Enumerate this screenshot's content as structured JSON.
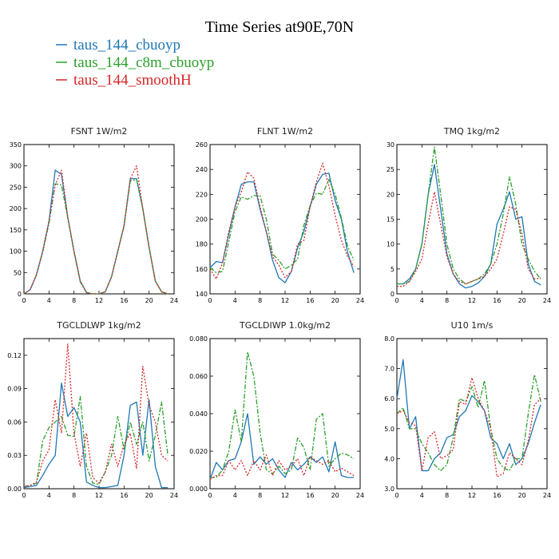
{
  "title": "Time Series at90E,70N",
  "colors": {
    "cbuoyp": "#1f77b4",
    "c8m": "#2ca02c",
    "smoothH": "#d62728"
  },
  "legend": [
    {
      "label": "taus_144_cbuoyp",
      "color": "#1f77b4"
    },
    {
      "label": "taus_144_c8m_cbuoyp",
      "color": "#2ca02c"
    },
    {
      "label": "taus_144_smoothH",
      "color": "#d62728"
    }
  ],
  "chart_data": [
    {
      "type": "line",
      "title": "FSNT   1W/m2",
      "x": [
        0,
        1,
        2,
        3,
        4,
        5,
        6,
        7,
        8,
        9,
        10,
        11,
        12,
        13,
        14,
        15,
        16,
        17,
        18,
        19,
        20,
        21,
        22,
        23
      ],
      "xlim": [
        0,
        24
      ],
      "xticks": [
        0,
        4,
        8,
        12,
        16,
        20,
        24
      ],
      "ylim": [
        0,
        350
      ],
      "yticks": [
        0,
        50,
        100,
        150,
        200,
        250,
        300,
        350
      ],
      "ytick_labels": [
        "0",
        "50",
        "100",
        "150",
        "200",
        "250",
        "300",
        "350"
      ],
      "series": [
        {
          "name": "taus_144_cbuoyp",
          "values": [
            0,
            10,
            45,
            100,
            170,
            290,
            280,
            180,
            100,
            30,
            3,
            0,
            0,
            5,
            40,
            100,
            160,
            270,
            270,
            200,
            110,
            30,
            5,
            0
          ]
        },
        {
          "name": "taus_144_c8m_cbuoyp",
          "values": [
            0,
            10,
            44,
            98,
            165,
            258,
            255,
            178,
            98,
            28,
            3,
            0,
            0,
            5,
            40,
            100,
            158,
            265,
            268,
            198,
            108,
            30,
            5,
            0
          ]
        },
        {
          "name": "taus_144_smoothH",
          "values": [
            0,
            10,
            45,
            100,
            170,
            255,
            290,
            180,
            100,
            30,
            3,
            0,
            0,
            5,
            40,
            100,
            160,
            270,
            300,
            200,
            110,
            30,
            5,
            0
          ]
        }
      ]
    },
    {
      "type": "line",
      "title": "FLNT   1W/m2",
      "x": [
        0,
        1,
        2,
        3,
        4,
        5,
        6,
        7,
        8,
        9,
        10,
        11,
        12,
        13,
        14,
        15,
        16,
        17,
        18,
        19,
        20,
        21,
        22,
        23
      ],
      "xlim": [
        0,
        24
      ],
      "xticks": [
        0,
        4,
        8,
        12,
        16,
        20,
        24
      ],
      "ylim": [
        140,
        260
      ],
      "yticks": [
        140,
        160,
        180,
        200,
        220,
        240,
        260
      ],
      "ytick_labels": [
        "140",
        "160",
        "180",
        "200",
        "220",
        "240",
        "260"
      ],
      "series": [
        {
          "name": "taus_144_cbuoyp",
          "values": [
            161,
            166,
            165,
            188,
            210,
            228,
            230,
            230,
            208,
            190,
            167,
            153,
            149,
            158,
            177,
            190,
            210,
            228,
            236,
            237,
            215,
            200,
            173,
            157
          ]
        },
        {
          "name": "taus_144_c8m_cbuoyp",
          "values": [
            161,
            157,
            158,
            182,
            206,
            218,
            216,
            219,
            219,
            200,
            172,
            167,
            160,
            163,
            168,
            195,
            211,
            221,
            220,
            232,
            220,
            201,
            178,
            167
          ]
        },
        {
          "name": "taus_144_smoothH",
          "values": [
            160,
            152,
            165,
            190,
            210,
            222,
            238,
            233,
            210,
            190,
            170,
            163,
            153,
            158,
            180,
            183,
            210,
            230,
            245,
            227,
            203,
            183,
            170,
            162
          ]
        }
      ]
    },
    {
      "type": "line",
      "title": "TMQ   1kg/m2",
      "x": [
        0,
        1,
        2,
        3,
        4,
        5,
        6,
        7,
        8,
        9,
        10,
        11,
        12,
        13,
        14,
        15,
        16,
        17,
        18,
        19,
        20,
        21,
        22,
        23
      ],
      "xlim": [
        0,
        24
      ],
      "xticks": [
        0,
        4,
        8,
        12,
        16,
        20,
        24
      ],
      "ylim": [
        0,
        30
      ],
      "yticks": [
        0,
        5,
        10,
        15,
        20,
        25,
        30
      ],
      "ytick_labels": [
        "0",
        "5",
        "10",
        "15",
        "20",
        "25",
        "30"
      ],
      "series": [
        {
          "name": "taus_144_cbuoyp",
          "values": [
            2,
            2,
            3,
            5,
            10,
            20,
            26,
            17,
            8,
            4,
            2,
            1.2,
            1.5,
            2.2,
            3.5,
            6,
            14,
            17,
            20.5,
            15,
            15.5,
            6,
            2.5,
            1.8
          ]
        },
        {
          "name": "taus_144_c8m_cbuoyp",
          "values": [
            2,
            2,
            2.5,
            5,
            10,
            20,
            29.5,
            20,
            10,
            5,
            3,
            2,
            2.5,
            3,
            4,
            6,
            10,
            16,
            23.5,
            18,
            10,
            7,
            4.5,
            3
          ]
        },
        {
          "name": "taus_144_smoothH",
          "values": [
            1.5,
            1.5,
            2.5,
            4.5,
            7,
            14,
            20.5,
            14,
            7.5,
            4,
            2.5,
            2,
            2.5,
            3,
            3.5,
            5,
            7,
            12,
            17.5,
            17,
            12,
            5,
            3,
            3.2
          ]
        }
      ]
    },
    {
      "type": "line",
      "title": "TGCLDLWP   1kg/m2",
      "x": [
        0,
        1,
        2,
        3,
        4,
        5,
        6,
        7,
        8,
        9,
        10,
        11,
        12,
        13,
        14,
        15,
        16,
        17,
        18,
        19,
        20,
        21,
        22,
        23
      ],
      "xlim": [
        0,
        24
      ],
      "xticks": [
        0,
        4,
        8,
        12,
        16,
        20,
        24
      ],
      "ylim": [
        0,
        0.135
      ],
      "yticks": [
        0,
        0.03,
        0.06,
        0.09,
        0.12
      ],
      "ytick_labels": [
        "0.00",
        "0.03",
        "0.06",
        "0.09",
        "0.12"
      ],
      "series": [
        {
          "name": "taus_144_cbuoyp",
          "values": [
            0.001,
            0.002,
            0.003,
            0.012,
            0.022,
            0.03,
            0.095,
            0.065,
            0.073,
            0.06,
            0.006,
            0.003,
            0.001,
            0.001,
            0.002,
            0.003,
            0.03,
            0.075,
            0.078,
            0.03,
            0.08,
            0.02,
            0.001,
            0.001
          ]
        },
        {
          "name": "taus_144_c8m_cbuoyp",
          "values": [
            0.002,
            0.003,
            0.005,
            0.043,
            0.055,
            0.06,
            0.065,
            0.048,
            0.047,
            0.083,
            0.02,
            0.005,
            0.004,
            0.015,
            0.03,
            0.065,
            0.035,
            0.06,
            0.04,
            0.06,
            0.025,
            0.048,
            0.078,
            0.03
          ]
        },
        {
          "name": "taus_144_smoothH",
          "values": [
            0.002,
            0.003,
            0.006,
            0.025,
            0.035,
            0.08,
            0.05,
            0.13,
            0.05,
            0.02,
            0.05,
            0.01,
            0.005,
            0.015,
            0.04,
            0.02,
            0.04,
            0.05,
            0.018,
            0.11,
            0.075,
            0.06,
            0.03,
            0.025
          ]
        }
      ]
    },
    {
      "type": "line",
      "title": "TGCLDIWP   1.0kg/m2",
      "x": [
        0,
        1,
        2,
        3,
        4,
        5,
        6,
        7,
        8,
        9,
        10,
        11,
        12,
        13,
        14,
        15,
        16,
        17,
        18,
        19,
        20,
        21,
        22,
        23
      ],
      "xlim": [
        0,
        24
      ],
      "xticks": [
        0,
        4,
        8,
        12,
        16,
        20,
        24
      ],
      "ylim": [
        0,
        0.08
      ],
      "yticks": [
        0,
        0.02,
        0.04,
        0.06,
        0.08
      ],
      "ytick_labels": [
        "0.000",
        "0.020",
        "0.040",
        "0.060",
        "0.080"
      ],
      "series": [
        {
          "name": "taus_144_cbuoyp",
          "values": [
            0.005,
            0.014,
            0.01,
            0.015,
            0.016,
            0.025,
            0.04,
            0.013,
            0.017,
            0.013,
            0.016,
            0.01,
            0.006,
            0.014,
            0.01,
            0.013,
            0.017,
            0.014,
            0.017,
            0.009,
            0.025,
            0.007,
            0.006,
            0.006
          ]
        },
        {
          "name": "taus_144_c8m_cbuoyp",
          "values": [
            0.006,
            0.006,
            0.01,
            0.02,
            0.042,
            0.025,
            0.073,
            0.06,
            0.03,
            0.01,
            0.008,
            0.012,
            0.008,
            0.01,
            0.027,
            0.022,
            0.01,
            0.037,
            0.04,
            0.012,
            0.016,
            0.019,
            0.018,
            0.016
          ]
        },
        {
          "name": "taus_144_smoothH",
          "values": [
            0.005,
            0.007,
            0.007,
            0.015,
            0.01,
            0.015,
            0.007,
            0.015,
            0.01,
            0.018,
            0.007,
            0.015,
            0.01,
            0.012,
            0.016,
            0.007,
            0.017,
            0.015,
            0.013,
            0.015,
            0.009,
            0.011,
            0.009,
            0.007
          ]
        }
      ]
    },
    {
      "type": "line",
      "title": "U10   1m/s",
      "x": [
        0,
        1,
        2,
        3,
        4,
        5,
        6,
        7,
        8,
        9,
        10,
        11,
        12,
        13,
        14,
        15,
        16,
        17,
        18,
        19,
        20,
        21,
        22,
        23
      ],
      "xlim": [
        0,
        24
      ],
      "xticks": [
        0,
        4,
        8,
        12,
        16,
        20,
        24
      ],
      "ylim": [
        3.0,
        8.0
      ],
      "yticks": [
        3.0,
        4.0,
        5.0,
        6.0,
        7.0,
        8.0
      ],
      "ytick_labels": [
        "3.0",
        "4.0",
        "5.0",
        "6.0",
        "7.0",
        "8.0"
      ],
      "series": [
        {
          "name": "taus_144_cbuoyp",
          "values": [
            6.0,
            7.3,
            5.0,
            5.4,
            3.6,
            3.6,
            4.0,
            4.2,
            4.7,
            4.8,
            5.4,
            5.6,
            6.1,
            5.9,
            5.6,
            4.7,
            4.5,
            4.0,
            4.5,
            3.8,
            4.0,
            4.5,
            5.2,
            5.8
          ]
        },
        {
          "name": "taus_144_c8m_cbuoyp",
          "values": [
            5.5,
            5.7,
            5.0,
            5.0,
            4.5,
            4.2,
            3.8,
            3.6,
            3.8,
            4.7,
            6.0,
            5.9,
            6.4,
            5.7,
            6.6,
            5.0,
            4.0,
            3.7,
            3.6,
            4.0,
            4.0,
            5.5,
            6.8,
            5.9
          ]
        },
        {
          "name": "taus_144_smoothH",
          "values": [
            5.5,
            5.6,
            5.2,
            5.1,
            3.6,
            4.7,
            4.9,
            4.0,
            4.1,
            4.3,
            5.9,
            5.8,
            6.7,
            6.0,
            5.6,
            5.0,
            3.4,
            3.5,
            4.2,
            4.0,
            3.8,
            4.6,
            5.8,
            6.0
          ]
        }
      ]
    }
  ]
}
